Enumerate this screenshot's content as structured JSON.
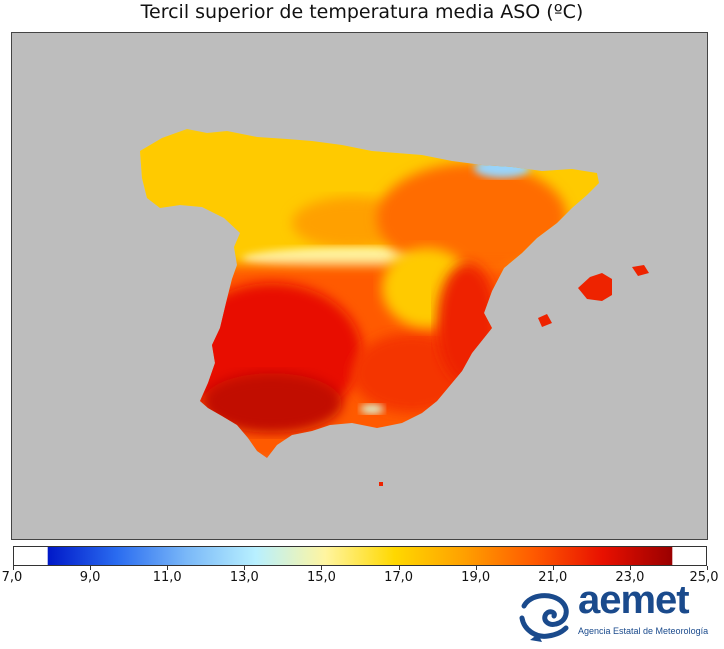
{
  "title": "Tercil superior de temperatura media ASO (ºC)",
  "map": {
    "background_color": "#bdbdbd",
    "region": "Península Ibérica y Baleares",
    "patches": [
      {
        "name": "north-coast-yellow",
        "temp": 16.5
      },
      {
        "name": "cantabrian-cool",
        "temp": 14.0
      },
      {
        "name": "north-plateau-yellow",
        "temp": 17.5
      },
      {
        "name": "north-plateau-orange",
        "temp": 19.0
      },
      {
        "name": "central-system-cool",
        "temp": 15.0
      },
      {
        "name": "ebro-valley-orange",
        "temp": 20.5
      },
      {
        "name": "pyrenees-cool",
        "temp": 12.0
      },
      {
        "name": "south-plateau-orange",
        "temp": 21.0
      },
      {
        "name": "southwest-red",
        "temp": 23.0
      },
      {
        "name": "guadalquivir-dark",
        "temp": 24.0
      },
      {
        "name": "south-east-red",
        "temp": 22.0
      },
      {
        "name": "sierra-nevada-cool",
        "temp": 14.0
      },
      {
        "name": "iberian-mountains-yellow",
        "temp": 17.5
      },
      {
        "name": "mediterranean-coast-red",
        "temp": 22.5
      },
      {
        "name": "balearics-red",
        "temp": 22.5
      }
    ]
  },
  "colorbar": {
    "min": 7.0,
    "max": 25.0,
    "tick_labels": [
      "7,0",
      "9,0",
      "11,0",
      "13,0",
      "15,0",
      "17,0",
      "19,0",
      "21,0",
      "23,0",
      "25,0"
    ],
    "colors": [
      "#0018c8",
      "#2a6cf0",
      "#7ab8f8",
      "#b8f0ff",
      "#fff5a0",
      "#ffd800",
      "#ffa000",
      "#ff5a00",
      "#e81000",
      "#9a0000"
    ]
  },
  "logo": {
    "name": "aemet",
    "subtitle": "Agencia Estatal de Meteorología"
  }
}
